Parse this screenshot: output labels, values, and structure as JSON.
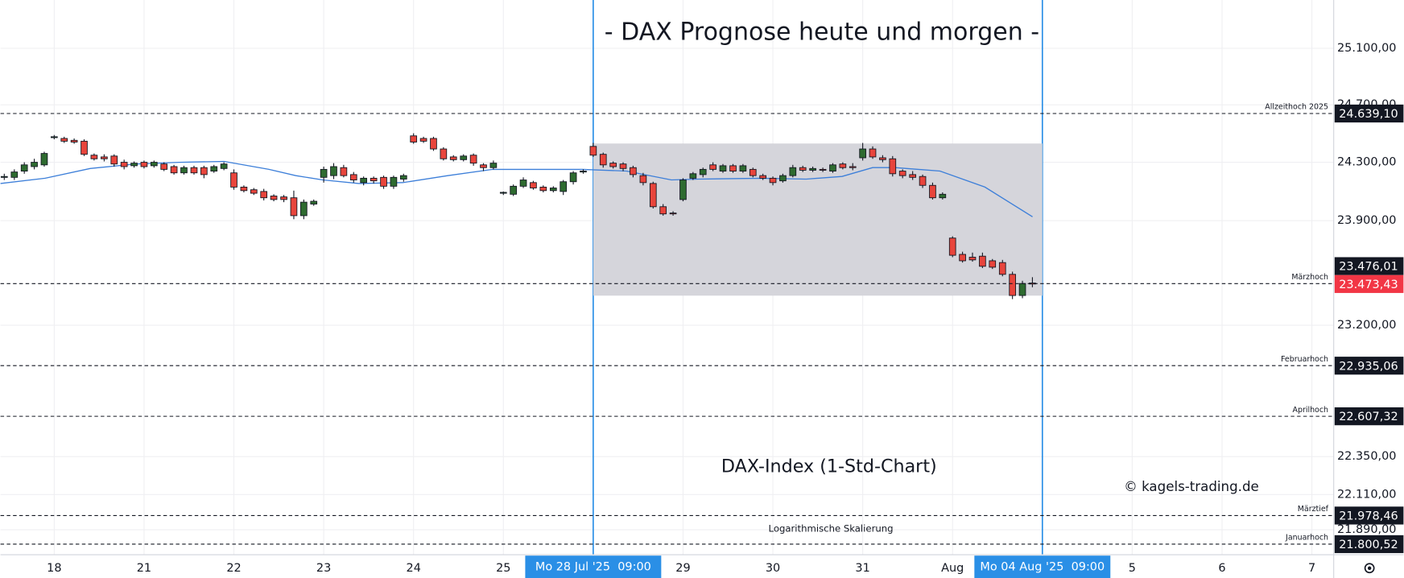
{
  "chart_data": {
    "type": "candlestick",
    "title": "- DAX Prognose heute und morgen -",
    "subtitle": "DAX-Index (1-Std-Chart)",
    "credit": "© kagels-trading.de",
    "scale_note": "Logarithmische Skalierung",
    "log_scale": true,
    "grid": true,
    "up_color": "#2e6b30",
    "down_color": "#e8453c",
    "ma_color": "#3d7fd9",
    "zone_color": "#d3d3d9",
    "xlim": [
      -0.598,
      14.243
    ],
    "xticks": [
      {
        "value": 0,
        "label": "18"
      },
      {
        "value": 1,
        "label": "21"
      },
      {
        "value": 2,
        "label": "22"
      },
      {
        "value": 3,
        "label": "23"
      },
      {
        "value": 4,
        "label": "24"
      },
      {
        "value": 5,
        "label": "25"
      },
      {
        "value": 6,
        "label": "Mo 28 Jul '25  09:00",
        "highlight": true
      },
      {
        "value": 7,
        "label": "29"
      },
      {
        "value": 8,
        "label": "30"
      },
      {
        "value": 9,
        "label": "31"
      },
      {
        "value": 10,
        "label": "Aug"
      },
      {
        "value": 11,
        "label": "Mo 04 Aug '25  09:00",
        "highlight": true
      },
      {
        "value": 12,
        "label": "5"
      },
      {
        "value": 13,
        "label": "6"
      },
      {
        "value": 14,
        "label": "7"
      }
    ],
    "ylim": [
      21735,
      25447
    ],
    "yticks": [
      {
        "value": 25100,
        "label": "25.100,00"
      },
      {
        "value": 24700,
        "label": "24.700,00"
      },
      {
        "value": 24300,
        "label": "24.300,00"
      },
      {
        "value": 23900,
        "label": "23.900,00"
      },
      {
        "value": 23200,
        "label": "23.200,00"
      },
      {
        "value": 22350,
        "label": "22.350,00"
      },
      {
        "value": 22110,
        "label": "22.110,00"
      },
      {
        "value": 21890,
        "label": "21.890,00"
      }
    ],
    "levels": [
      {
        "name": "Allzeithoch 2025",
        "value": 24639.1,
        "label": "24.639,10"
      },
      {
        "name": "Märzhoch",
        "value": 23476.01,
        "label": "23.476,01"
      },
      {
        "name": "Februarhoch",
        "value": 22935.06,
        "label": "22.935,06"
      },
      {
        "name": "Aprilhoch",
        "value": 22607.32,
        "label": "22.607,32"
      },
      {
        "name": "Märztief",
        "value": 21978.46,
        "label": "21.978,46"
      },
      {
        "name": "Januarhoch",
        "value": 21800.52,
        "label": "21.800,52"
      }
    ],
    "current_price": {
      "value": 23473.43,
      "label": "23.473,43",
      "color": "#f23645"
    },
    "zone": {
      "x": [
        6,
        11
      ],
      "high": 24430,
      "low": 23396
    },
    "candles": {
      "x": [
        -0.556,
        -0.444,
        -0.333,
        -0.222,
        -0.111,
        0,
        0.111,
        0.222,
        0.333,
        0.444,
        0.556,
        0.667,
        0.778,
        0.889,
        1,
        1.111,
        1.222,
        1.333,
        1.444,
        1.556,
        1.667,
        1.778,
        1.889,
        2,
        2.111,
        2.222,
        2.333,
        2.444,
        2.556,
        2.667,
        2.778,
        2.889,
        3,
        3.111,
        3.222,
        3.333,
        3.444,
        3.556,
        3.667,
        3.778,
        3.889,
        4,
        4.111,
        4.222,
        4.333,
        4.444,
        4.556,
        4.667,
        4.778,
        4.889,
        5,
        5.111,
        5.222,
        5.333,
        5.444,
        5.556,
        5.667,
        5.778,
        5.889,
        6,
        6.111,
        6.222,
        6.333,
        6.444,
        6.556,
        6.667,
        6.778,
        6.889,
        7,
        7.111,
        7.222,
        7.333,
        7.444,
        7.556,
        7.667,
        7.778,
        7.889,
        8,
        8.111,
        8.222,
        8.333,
        8.444,
        8.556,
        8.667,
        8.778,
        8.889,
        9,
        9.111,
        9.222,
        9.333,
        9.444,
        9.556,
        9.667,
        9.778,
        9.889,
        10,
        10.111,
        10.222,
        10.333,
        10.444,
        10.556,
        10.667,
        10.778,
        10.889
      ],
      "open": [
        24196,
        24196,
        24239,
        24270,
        24282,
        24471,
        24465,
        24452,
        24446,
        24349,
        24337,
        24343,
        24300,
        24276,
        24300,
        24276,
        24288,
        24270,
        24227,
        24263,
        24263,
        24239,
        24257,
        24227,
        24129,
        24111,
        24099,
        24068,
        24062,
        24056,
        23934,
        24013,
        24196,
        24208,
        24263,
        24215,
        24160,
        24190,
        24196,
        24135,
        24184,
        24483,
        24465,
        24465,
        24392,
        24337,
        24318,
        24349,
        24282,
        24263,
        24087,
        24080,
        24135,
        24160,
        24129,
        24105,
        24099,
        24166,
        24233,
        24410,
        24355,
        24294,
        24288,
        24263,
        24208,
        24154,
        23995,
        23952,
        24044,
        24190,
        24215,
        24282,
        24239,
        24276,
        24239,
        24251,
        24208,
        24190,
        24172,
        24208,
        24263,
        24245,
        24251,
        24239,
        24288,
        24270,
        24331,
        24392,
        24331,
        24324,
        24239,
        24215,
        24202,
        24141,
        24056,
        23782,
        23672,
        23653,
        23660,
        23629,
        23617,
        23538,
        23397,
        23480
      ],
      "high": [
        24221,
        24251,
        24300,
        24324,
        24373,
        24489,
        24477,
        24465,
        24459,
        24361,
        24355,
        24355,
        24318,
        24306,
        24312,
        24312,
        24300,
        24282,
        24276,
        24276,
        24276,
        24282,
        24300,
        24251,
        24141,
        24123,
        24117,
        24080,
        24075,
        24105,
        24044,
        24044,
        24270,
        24294,
        24282,
        24233,
        24202,
        24202,
        24208,
        24208,
        24221,
        24501,
        24477,
        24477,
        24404,
        24349,
        24355,
        24361,
        24294,
        24312,
        24099,
        24147,
        24196,
        24172,
        24141,
        24135,
        24178,
        24239,
        24251,
        24434,
        24367,
        24306,
        24300,
        24276,
        24227,
        24166,
        24013,
        23964,
        24190,
        24233,
        24263,
        24300,
        24288,
        24288,
        24288,
        24263,
        24221,
        24202,
        24221,
        24282,
        24276,
        24270,
        24263,
        24294,
        24300,
        24294,
        24434,
        24410,
        24349,
        24343,
        24251,
        24239,
        24215,
        24160,
        24093,
        23794,
        23690,
        23684,
        23684,
        23641,
        23635,
        23556,
        23495,
        23519
      ],
      "low": [
        24178,
        24178,
        24221,
        24251,
        24270,
        24459,
        24434,
        24428,
        24343,
        24312,
        24306,
        24270,
        24251,
        24263,
        24257,
        24263,
        24239,
        24215,
        24215,
        24215,
        24190,
        24227,
        24245,
        24111,
        24093,
        24075,
        24038,
        24032,
        24026,
        23910,
        23910,
        24001,
        24160,
        24184,
        24196,
        24160,
        24141,
        24154,
        24117,
        24117,
        24166,
        24428,
        24434,
        24379,
        24312,
        24306,
        24306,
        24276,
        24239,
        24251,
        24075,
        24068,
        24123,
        24111,
        24093,
        24093,
        24075,
        24147,
        24221,
        24337,
        24263,
        24257,
        24239,
        24196,
        24141,
        23983,
        23934,
        23934,
        24032,
        24178,
        24196,
        24239,
        24227,
        24227,
        24227,
        24196,
        24178,
        24141,
        24160,
        24196,
        24233,
        24233,
        24233,
        24227,
        24251,
        24245,
        24312,
        24324,
        24300,
        24202,
        24190,
        24178,
        24123,
        24044,
        24044,
        23653,
        23617,
        23623,
        23580,
        23574,
        23525,
        23373,
        23379,
        23452
      ],
      "close": [
        24202,
        24233,
        24282,
        24300,
        24361,
        24477,
        24446,
        24440,
        24355,
        24324,
        24324,
        24288,
        24270,
        24294,
        24270,
        24300,
        24251,
        24227,
        24263,
        24227,
        24215,
        24270,
        24288,
        24129,
        24105,
        24087,
        24056,
        24044,
        24044,
        23934,
        24026,
        24032,
        24251,
        24270,
        24208,
        24178,
        24190,
        24172,
        24135,
        24196,
        24208,
        24440,
        24446,
        24392,
        24324,
        24318,
        24343,
        24294,
        24263,
        24294,
        24093,
        24135,
        24178,
        24123,
        24105,
        24123,
        24166,
        24227,
        24239,
        24349,
        24282,
        24270,
        24257,
        24215,
        24160,
        23995,
        23946,
        23946,
        24178,
        24221,
        24251,
        24251,
        24276,
        24239,
        24276,
        24208,
        24190,
        24160,
        24208,
        24263,
        24245,
        24257,
        24245,
        24282,
        24263,
        24263,
        24392,
        24337,
        24318,
        24221,
        24208,
        24196,
        24141,
        24056,
        24080,
        23666,
        23629,
        23635,
        23592,
        23586,
        23538,
        23397,
        23477,
        23473.43
      ]
    },
    "moving_average": {
      "x": [
        -0.598,
        -0.1,
        0.4,
        0.9,
        1.39,
        1.89,
        2.39,
        2.69,
        2.99,
        3.39,
        3.88,
        4.38,
        4.88,
        5.38,
        5.88,
        6.37,
        6.87,
        7.17,
        7.87,
        8.37,
        8.77,
        9.11,
        9.36,
        9.86,
        10.36,
        10.89
      ],
      "values": [
        24154,
        24190,
        24257,
        24288,
        24300,
        24306,
        24251,
        24208,
        24178,
        24154,
        24160,
        24208,
        24251,
        24251,
        24251,
        24239,
        24178,
        24184,
        24190,
        24184,
        24202,
        24263,
        24263,
        24239,
        24129,
        23926
      ]
    }
  }
}
